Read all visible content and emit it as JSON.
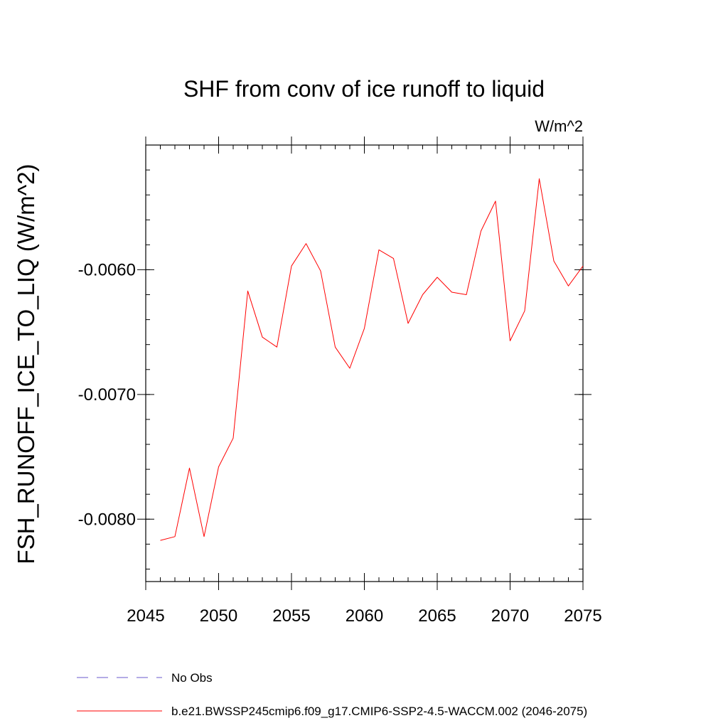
{
  "chart_data": {
    "type": "line",
    "title": "SHF from conv of ice runoff to liquid",
    "units_label": "W/m^2",
    "xlabel": "",
    "ylabel": "FSH_RUNOFF_ICE_TO_LIQ  (W/m^2)",
    "xlim": [
      2045,
      2075
    ],
    "ylim": [
      -0.0085,
      -0.005
    ],
    "x_ticks": [
      2045,
      2050,
      2055,
      2060,
      2065,
      2070,
      2075
    ],
    "x_tick_labels": [
      "2045",
      "2050",
      "2055",
      "2060",
      "2065",
      "2070",
      "2075"
    ],
    "x_minor_tick_step": 1,
    "y_ticks": [
      -0.006,
      -0.007,
      -0.008
    ],
    "y_tick_labels": [
      "-0.0060",
      "-0.0070",
      "-0.0080"
    ],
    "y_minor_tick_step": 0.0002,
    "grid": false,
    "series": [
      {
        "name": "b.e21.BWSSP245cmip6.f09_g17.CMIP6-SSP2-4.5-WACCM.002 (2046-2075)",
        "color": "#ff0000",
        "x": [
          2046,
          2047,
          2048,
          2049,
          2050,
          2051,
          2052,
          2053,
          2054,
          2055,
          2056,
          2057,
          2058,
          2059,
          2060,
          2061,
          2062,
          2063,
          2064,
          2065,
          2066,
          2067,
          2068,
          2069,
          2070,
          2071,
          2072,
          2073,
          2074,
          2075
        ],
        "values": [
          -0.00817,
          -0.00814,
          -0.00759,
          -0.00814,
          -0.00758,
          -0.00735,
          -0.00617,
          -0.00654,
          -0.00662,
          -0.00597,
          -0.00579,
          -0.00601,
          -0.00662,
          -0.00679,
          -0.00647,
          -0.00584,
          -0.00591,
          -0.00643,
          -0.0062,
          -0.00606,
          -0.00618,
          -0.0062,
          -0.00569,
          -0.00545,
          -0.00657,
          -0.00633,
          -0.00527,
          -0.00593,
          -0.00613,
          -0.00597
        ]
      }
    ],
    "legend": {
      "position": "bottom",
      "entries": [
        {
          "label": "No Obs",
          "color": "#6a5acd",
          "style": "dashed"
        },
        {
          "label": "b.e21.BWSSP245cmip6.f09_g17.CMIP6-SSP2-4.5-WACCM.002 (2046-2075)",
          "color": "#ff0000",
          "style": "solid"
        }
      ]
    }
  }
}
